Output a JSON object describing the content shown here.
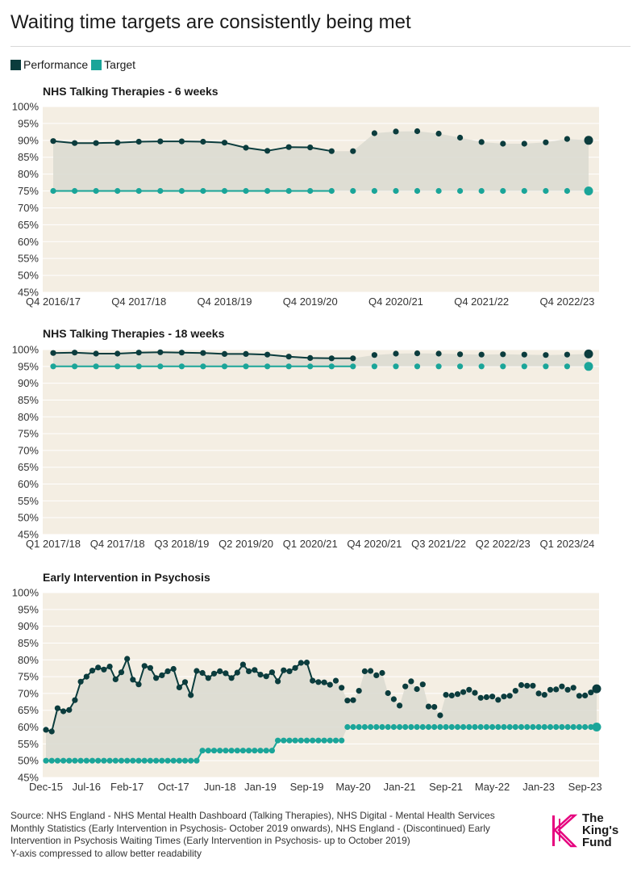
{
  "title": "Waiting time targets are consistently being met",
  "legend": [
    {
      "label": "Performance",
      "color": "#0b3c3d"
    },
    {
      "label": "Target",
      "color": "#1aa599"
    }
  ],
  "colors": {
    "background": "#f4eee3",
    "performance": "#0b3c3d",
    "target": "#1aa599",
    "shade": "#d9d9d0",
    "grid": "#ffffff"
  },
  "source": "Source: NHS England - NHS Mental Health Dashboard (Talking Therapies), NHS Digital - Mental Health Services Monthly Statistics (Early Intervention in Psychosis- October 2019 onwards), NHS England - (Discontinued) Early Intervention in Psychosis Waiting Times (Early Intervention in Psychosis- up to October 2019)",
  "footnote": "Y-axis compressed to allow better readability",
  "logo": {
    "line1": "The",
    "line2": "King's",
    "line3": "Fund",
    "color": "#e6007e"
  },
  "chart_data": [
    {
      "type": "line",
      "title": "NHS Talking Therapies - 6 weeks",
      "ylim": [
        45,
        100
      ],
      "yticks": [
        45,
        50,
        55,
        60,
        65,
        70,
        75,
        80,
        85,
        90,
        95,
        100
      ],
      "xticklabels": [
        "Q4 2016/17",
        "Q4 2017/18",
        "Q4 2018/19",
        "Q4 2019/20",
        "Q4 2020/21",
        "Q4 2021/22",
        "Q4 2022/23"
      ],
      "xtickindex": [
        0,
        4,
        8,
        12,
        16,
        20,
        24
      ],
      "line_end_index": 13,
      "series": [
        {
          "name": "Performance",
          "values": [
            89.8,
            89.2,
            89.2,
            89.3,
            89.6,
            89.7,
            89.7,
            89.6,
            89.3,
            87.8,
            86.9,
            88.0,
            87.9,
            86.8,
            86.8,
            92.1,
            92.6,
            92.7,
            92.0,
            90.8,
            89.5,
            89.0,
            89.0,
            89.4,
            90.4,
            90.0
          ]
        },
        {
          "name": "Target",
          "values": [
            75,
            75,
            75,
            75,
            75,
            75,
            75,
            75,
            75,
            75,
            75,
            75,
            75,
            75,
            75,
            75,
            75,
            75,
            75,
            75,
            75,
            75,
            75,
            75,
            75,
            75
          ]
        }
      ]
    },
    {
      "type": "line",
      "title": "NHS Talking Therapies - 18 weeks",
      "ylim": [
        45,
        100
      ],
      "yticks": [
        45,
        50,
        55,
        60,
        65,
        70,
        75,
        80,
        85,
        90,
        95,
        100
      ],
      "xticklabels": [
        "Q1 2017/18",
        "Q4 2017/18",
        "Q3 2018/19",
        "Q2 2019/20",
        "Q1 2020/21",
        "Q4 2020/21",
        "Q3 2021/22",
        "Q2 2022/23",
        "Q1 2023/24"
      ],
      "xtickindex": [
        0,
        3,
        6,
        9,
        12,
        15,
        18,
        21,
        24
      ],
      "line_end_index": 14,
      "series": [
        {
          "name": "Performance",
          "values": [
            99.0,
            99.1,
            98.8,
            98.8,
            99.1,
            99.2,
            99.1,
            99.0,
            98.7,
            98.7,
            98.5,
            97.9,
            97.5,
            97.4,
            97.4,
            98.4,
            98.8,
            98.9,
            98.8,
            98.6,
            98.5,
            98.6,
            98.5,
            98.4,
            98.5,
            98.7
          ]
        },
        {
          "name": "Target",
          "values": [
            95,
            95,
            95,
            95,
            95,
            95,
            95,
            95,
            95,
            95,
            95,
            95,
            95,
            95,
            95,
            95,
            95,
            95,
            95,
            95,
            95,
            95,
            95,
            95,
            95,
            95
          ]
        }
      ]
    },
    {
      "type": "line",
      "title": "Early Intervention in Psychosis",
      "ylim": [
        45,
        100
      ],
      "yticks": [
        45,
        50,
        55,
        60,
        65,
        70,
        75,
        80,
        85,
        90,
        95,
        100
      ],
      "xticklabels": [
        "Dec-15",
        "Jul-16",
        "Feb-17",
        "Oct-17",
        "Jun-18",
        "Jan-19",
        "Sep-19",
        "May-20",
        "Jan-21",
        "Sep-21",
        "May-22",
        "Jan-23",
        "Sep-23"
      ],
      "xtickindex": [
        0,
        7,
        14,
        22,
        30,
        37,
        45,
        53,
        61,
        69,
        77,
        85,
        93
      ],
      "line_end_index": 49,
      "series": [
        {
          "name": "Performance",
          "values": [
            59.2,
            58.7,
            65.6,
            64.7,
            65.1,
            68.0,
            73.5,
            75.0,
            76.8,
            77.7,
            77.1,
            78.0,
            74.2,
            76.3,
            80.3,
            74.1,
            72.7,
            78.2,
            77.6,
            74.6,
            75.4,
            76.6,
            77.3,
            71.8,
            73.4,
            69.5,
            76.7,
            76.1,
            74.6,
            75.9,
            76.6,
            76.0,
            74.6,
            76.2,
            78.6,
            76.6,
            77.0,
            75.6,
            75.1,
            76.3,
            73.6,
            76.9,
            76.6,
            77.6,
            79.1,
            79.2,
            73.8,
            73.4,
            73.3,
            72.6,
            73.8,
            71.7,
            67.9,
            68.0,
            70.8,
            76.6,
            76.7,
            75.4,
            76.1,
            70.1,
            68.3,
            66.4,
            72.1,
            73.6,
            71.3,
            72.7,
            66.1,
            66.0,
            63.5,
            69.6,
            69.4,
            69.8,
            70.4,
            71.1,
            70.2,
            68.7,
            68.9,
            69.1,
            68.1,
            69.1,
            69.3,
            70.8,
            72.5,
            72.3,
            72.3,
            70.0,
            69.6,
            71.1,
            71.2,
            72.1,
            71.1,
            71.7,
            69.3,
            69.4,
            70.3,
            71.4
          ]
        },
        {
          "name": "Target",
          "values": [
            50,
            50,
            50,
            50,
            50,
            50,
            50,
            50,
            50,
            50,
            50,
            50,
            50,
            50,
            50,
            50,
            50,
            50,
            50,
            50,
            50,
            50,
            50,
            50,
            50,
            50,
            50,
            53,
            53,
            53,
            53,
            53,
            53,
            53,
            53,
            53,
            53,
            53,
            53,
            53,
            56,
            56,
            56,
            56,
            56,
            56,
            56,
            56,
            56,
            56,
            56,
            56,
            60,
            60,
            60,
            60,
            60,
            60,
            60,
            60,
            60,
            60,
            60,
            60,
            60,
            60,
            60,
            60,
            60,
            60,
            60,
            60,
            60,
            60,
            60,
            60,
            60,
            60,
            60,
            60,
            60,
            60,
            60,
            60,
            60,
            60,
            60,
            60,
            60,
            60,
            60,
            60,
            60,
            60,
            60,
            60
          ]
        }
      ]
    }
  ]
}
